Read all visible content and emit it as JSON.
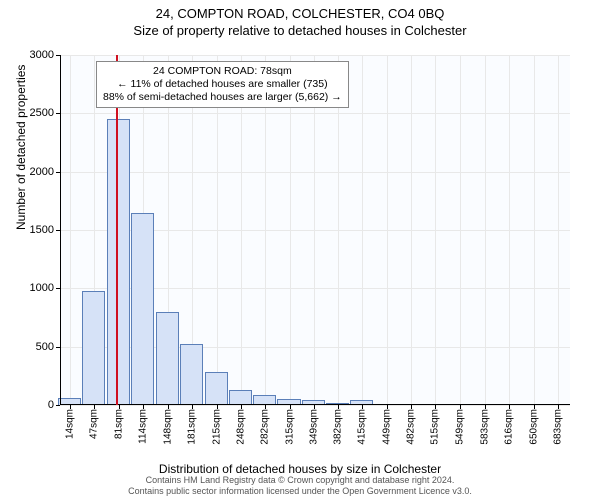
{
  "title": {
    "line1": "24, COMPTON ROAD, COLCHESTER, CO4 0BQ",
    "line2": "Size of property relative to detached houses in Colchester"
  },
  "chart": {
    "type": "histogram",
    "plot_bg": "#fafcff",
    "grid_color": "#e8e8e8",
    "axis_color": "#000000",
    "bar_fill": "#d6e2f7",
    "bar_stroke": "#5b7fb8",
    "marker_color": "#d01020",
    "marker_x": 78,
    "ylabel": "Number of detached properties",
    "xlabel": "Distribution of detached houses by size in Colchester",
    "xlim": [
      0,
      700
    ],
    "ylim": [
      0,
      3000
    ],
    "yticks": [
      0,
      500,
      1000,
      1500,
      2000,
      2500,
      3000
    ],
    "xticks": [
      14,
      47,
      81,
      114,
      148,
      181,
      215,
      248,
      282,
      315,
      349,
      382,
      415,
      449,
      482,
      515,
      549,
      583,
      616,
      650,
      683
    ],
    "xtick_suffix": "sqm",
    "bar_width_data": 33,
    "bars": [
      {
        "x": 14,
        "y": 60
      },
      {
        "x": 47,
        "y": 980
      },
      {
        "x": 81,
        "y": 2450
      },
      {
        "x": 114,
        "y": 1650
      },
      {
        "x": 148,
        "y": 800
      },
      {
        "x": 181,
        "y": 520
      },
      {
        "x": 215,
        "y": 280
      },
      {
        "x": 248,
        "y": 130
      },
      {
        "x": 282,
        "y": 90
      },
      {
        "x": 315,
        "y": 50
      },
      {
        "x": 349,
        "y": 40
      },
      {
        "x": 382,
        "y": 15
      },
      {
        "x": 415,
        "y": 45
      },
      {
        "x": 449,
        "y": 8
      },
      {
        "x": 482,
        "y": 5
      },
      {
        "x": 515,
        "y": 3
      },
      {
        "x": 549,
        "y": 2
      },
      {
        "x": 583,
        "y": 2
      },
      {
        "x": 616,
        "y": 1
      },
      {
        "x": 650,
        "y": 1
      },
      {
        "x": 683,
        "y": 1
      }
    ]
  },
  "annotation": {
    "line1": "24 COMPTON ROAD: 78sqm",
    "line2": "← 11% of detached houses are smaller (735)",
    "line3": "88% of semi-detached houses are larger (5,662) →"
  },
  "footer": {
    "line1": "Contains HM Land Registry data © Crown copyright and database right 2024.",
    "line2": "Contains public sector information licensed under the Open Government Licence v3.0."
  }
}
